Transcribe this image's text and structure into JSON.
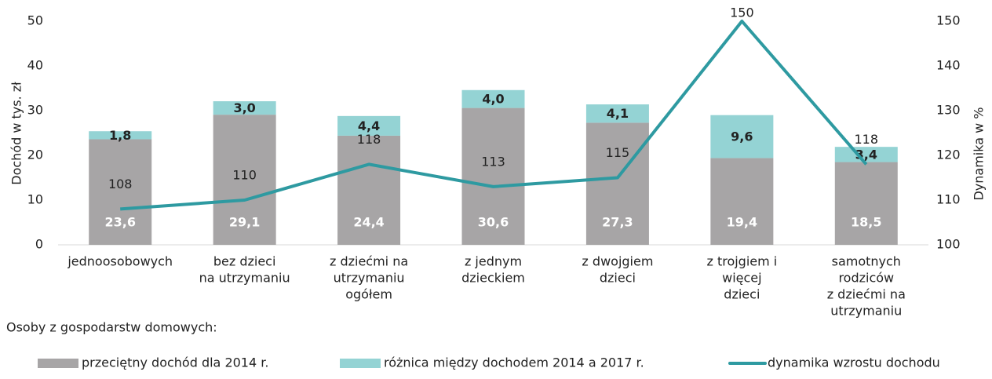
{
  "chart_data": {
    "type": "bar",
    "stacked": true,
    "y_label": "Dochód w tys. zł",
    "y2_label": "Dynamika w %",
    "annotation": "Osoby z gospodarstw domowych:",
    "categories": [
      [
        "jednoosobowych"
      ],
      [
        "bez dzieci",
        "na utrzymaniu"
      ],
      [
        "z dziećmi na",
        "utrzymaniu",
        "ogółem"
      ],
      [
        "z jednym",
        "dzieckiem"
      ],
      [
        "z dwojgiem",
        "dzieci"
      ],
      [
        "z trojgiem i",
        "więcej",
        "dzieci"
      ],
      [
        "samotnych",
        "rodziców",
        "z dziećmi na",
        "utrzymaniu"
      ]
    ],
    "series": [
      {
        "name": "przeciętny dochód dla 2014 r.",
        "color": "#a7a5a6",
        "values": [
          23.6,
          29.1,
          24.4,
          30.6,
          27.3,
          19.4,
          18.5
        ],
        "value_labels": [
          "23,6",
          "29,1",
          "24,4",
          "30,6",
          "27,3",
          "19,4",
          "18,5"
        ]
      },
      {
        "name": "różnica między dochodem 2014 a 2017 r.",
        "color": "#94d3d4",
        "values": [
          1.8,
          3.0,
          4.4,
          4.0,
          4.1,
          9.6,
          3.4
        ],
        "value_labels": [
          "1,8",
          "3,0",
          "4,4",
          "4,0",
          "4,1",
          "9,6",
          "3,4"
        ]
      },
      {
        "name": "dynamika wzrostu dochodu",
        "type": "line",
        "axis": "y2",
        "color": "#2e9aa1",
        "values": [
          108,
          110,
          118,
          113,
          115,
          150,
          118
        ]
      }
    ],
    "ylim": [
      0,
      50
    ],
    "yticks": [
      0,
      10,
      20,
      30,
      40,
      50
    ],
    "y2lim": [
      100,
      150
    ],
    "y2ticks": [
      100,
      110,
      120,
      130,
      140,
      150
    ],
    "grid": false
  }
}
